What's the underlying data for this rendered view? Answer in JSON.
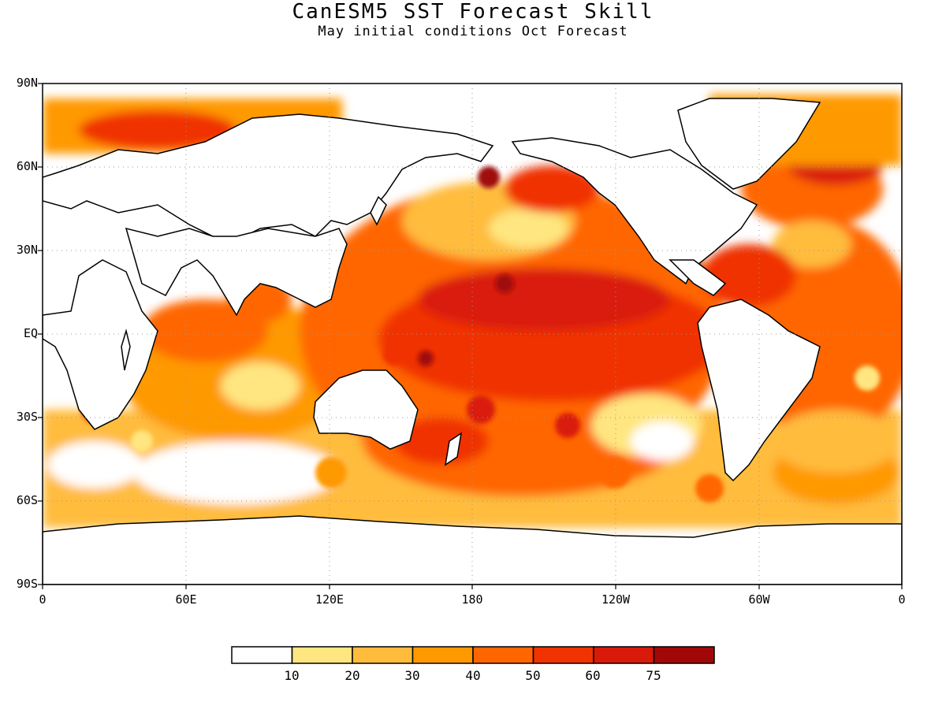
{
  "header": {
    "title": "CanESM5 SST Forecast Skill",
    "subtitle": "May initial conditions  Oct Forecast"
  },
  "map": {
    "lat_labels": [
      "90N",
      "60N",
      "30N",
      "EQ",
      "30S",
      "60S",
      "90S"
    ],
    "lon_labels": [
      "0",
      "60E",
      "120E",
      "180",
      "120W",
      "60W",
      "0"
    ]
  },
  "colorbar": {
    "colors": [
      "#ffffff",
      "#ffe680",
      "#ffbc3c",
      "#ff9900",
      "#ff6600",
      "#f03300",
      "#d91a0a",
      "#a00808"
    ],
    "labels": [
      "10",
      "20",
      "30",
      "40",
      "50",
      "60",
      "75"
    ]
  }
}
